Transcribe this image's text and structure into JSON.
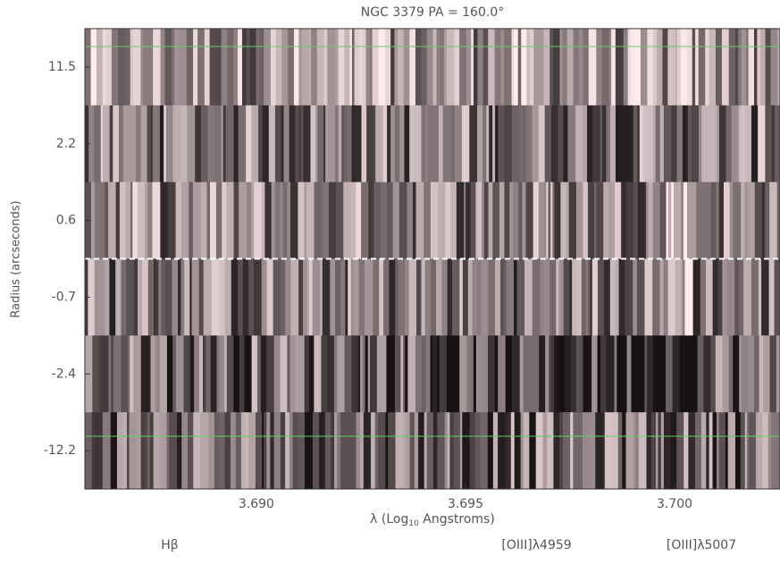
{
  "chart_data": {
    "type": "spectrum-image",
    "title": "NGC 3379 PA = 160.0°",
    "ylabel": "Radius (arcseconds)",
    "xlabel": {
      "prefix": "λ (Log",
      "sub": "10",
      "suffix": " Angstroms)"
    },
    "categories": [
      "11.5",
      "2.2",
      "0.6",
      "-0.7",
      "-2.4",
      "-12.2"
    ],
    "xlim": [
      3.6859,
      3.70252
    ],
    "xticks": [
      {
        "value": 3.69,
        "label": "3.690"
      },
      {
        "value": 3.695,
        "label": "3.695"
      },
      {
        "value": 3.7,
        "label": "3.700"
      }
    ],
    "line_labels": [
      {
        "text": "Hβ",
        "x": 3.68793
      },
      {
        "text": "[OIII]λ4959",
        "x": 3.6967
      },
      {
        "text": "[OIII]λ5007",
        "x": 3.70064
      }
    ]
  }
}
